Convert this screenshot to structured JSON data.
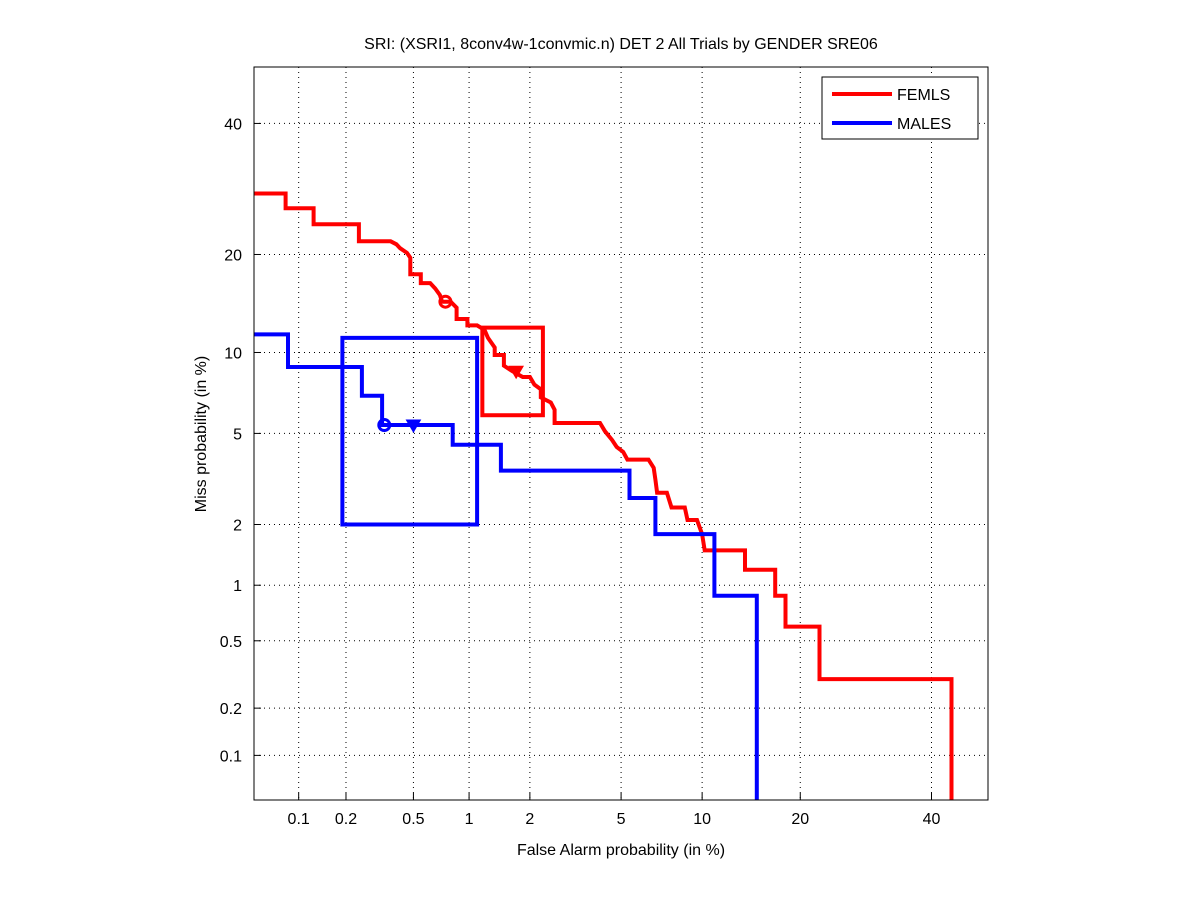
{
  "chart_data": {
    "type": "line",
    "title": "SRI: (XSRI1, 8conv4w-1convmic.n) DET 2 All Trials by GENDER SRE06",
    "xlabel": "False Alarm probability (in %)",
    "ylabel": "Miss probability (in %)",
    "xscale": "normal-deviate",
    "yscale": "normal-deviate",
    "xlim": [
      0.05,
      50
    ],
    "ylim": [
      0.05,
      50
    ],
    "grid": true,
    "legend_position": "top-right",
    "xticks": [
      0.1,
      0.2,
      0.5,
      1,
      2,
      5,
      10,
      20,
      40
    ],
    "xtick_labels": [
      "0.1",
      "0.2",
      "0.5",
      "1",
      "2",
      "5",
      "10",
      "20",
      "40"
    ],
    "yticks": [
      0.1,
      0.2,
      0.5,
      1,
      2,
      5,
      10,
      20,
      40
    ],
    "ytick_labels": [
      "0.1",
      "0.2",
      "0.5",
      "1",
      "2",
      "5",
      "10",
      "20",
      "40"
    ],
    "series": [
      {
        "name": "FEMLS",
        "color": "#ff0000",
        "points": [
          [
            0.05,
            28.5
          ],
          [
            0.082,
            28.5
          ],
          [
            0.082,
            26.3
          ],
          [
            0.125,
            26.3
          ],
          [
            0.125,
            24.0
          ],
          [
            0.24,
            24.0
          ],
          [
            0.24,
            21.7
          ],
          [
            0.37,
            21.7
          ],
          [
            0.4,
            21.3
          ],
          [
            0.42,
            20.8
          ],
          [
            0.46,
            20.2
          ],
          [
            0.48,
            19.6
          ],
          [
            0.48,
            17.6
          ],
          [
            0.55,
            17.6
          ],
          [
            0.55,
            16.6
          ],
          [
            0.62,
            16.6
          ],
          [
            0.66,
            16.0
          ],
          [
            0.7,
            15.3
          ],
          [
            0.72,
            14.6
          ],
          [
            0.8,
            14.6
          ],
          [
            0.86,
            14.0
          ],
          [
            0.86,
            12.9
          ],
          [
            0.98,
            12.9
          ],
          [
            0.98,
            12.3
          ],
          [
            1.1,
            12.3
          ],
          [
            1.2,
            11.9
          ],
          [
            1.25,
            11.2
          ],
          [
            1.35,
            10.4
          ],
          [
            1.35,
            9.8
          ],
          [
            1.5,
            9.8
          ],
          [
            1.5,
            9.0
          ],
          [
            1.65,
            8.6
          ],
          [
            1.85,
            8.2
          ],
          [
            2.0,
            8.2
          ],
          [
            2.1,
            7.7
          ],
          [
            2.25,
            7.4
          ],
          [
            2.25,
            6.9
          ],
          [
            2.5,
            6.6
          ],
          [
            2.6,
            6.2
          ],
          [
            2.6,
            5.5
          ],
          [
            4.1,
            5.5
          ],
          [
            4.3,
            5.1
          ],
          [
            4.6,
            4.7
          ],
          [
            4.8,
            4.4
          ],
          [
            5.1,
            4.2
          ],
          [
            5.3,
            3.9
          ],
          [
            6.4,
            3.9
          ],
          [
            6.7,
            3.6
          ],
          [
            6.8,
            3.2
          ],
          [
            6.9,
            2.8
          ],
          [
            7.5,
            2.8
          ],
          [
            7.8,
            2.4
          ],
          [
            8.7,
            2.4
          ],
          [
            8.9,
            2.1
          ],
          [
            9.6,
            2.1
          ],
          [
            10.0,
            1.8
          ],
          [
            10.2,
            1.5
          ],
          [
            13.8,
            1.5
          ],
          [
            13.8,
            1.2
          ],
          [
            17.0,
            1.2
          ],
          [
            17.0,
            0.88
          ],
          [
            18.2,
            0.88
          ],
          [
            18.2,
            0.6
          ],
          [
            22.5,
            0.6
          ],
          [
            22.5,
            0.3
          ],
          [
            43.5,
            0.3
          ],
          [
            43.5,
            0.05
          ]
        ],
        "markers": {
          "circle": [
            0.75,
            14.6
          ],
          "triangle": [
            1.72,
            8.6
          ]
        },
        "confidence_box": {
          "x": [
            1.17,
            2.3
          ],
          "y": [
            5.9,
            12.1
          ]
        }
      },
      {
        "name": "MALES",
        "color": "#0000ff",
        "points": [
          [
            0.05,
            11.5
          ],
          [
            0.085,
            11.5
          ],
          [
            0.085,
            8.9
          ],
          [
            0.25,
            8.9
          ],
          [
            0.25,
            7.0
          ],
          [
            0.33,
            7.0
          ],
          [
            0.33,
            5.4
          ],
          [
            0.82,
            5.4
          ],
          [
            0.82,
            4.5
          ],
          [
            1.45,
            4.5
          ],
          [
            1.45,
            3.5
          ],
          [
            5.4,
            3.5
          ],
          [
            5.4,
            2.65
          ],
          [
            6.8,
            2.65
          ],
          [
            6.8,
            1.8
          ],
          [
            11.0,
            1.8
          ],
          [
            11.0,
            0.88
          ],
          [
            15.0,
            0.88
          ],
          [
            15.0,
            0.05
          ]
        ],
        "markers": {
          "circle": [
            0.34,
            5.4
          ],
          "triangle": [
            0.5,
            5.4
          ]
        },
        "confidence_box": {
          "x": [
            0.19,
            1.1
          ],
          "y": [
            2.0,
            11.2
          ]
        }
      }
    ]
  }
}
